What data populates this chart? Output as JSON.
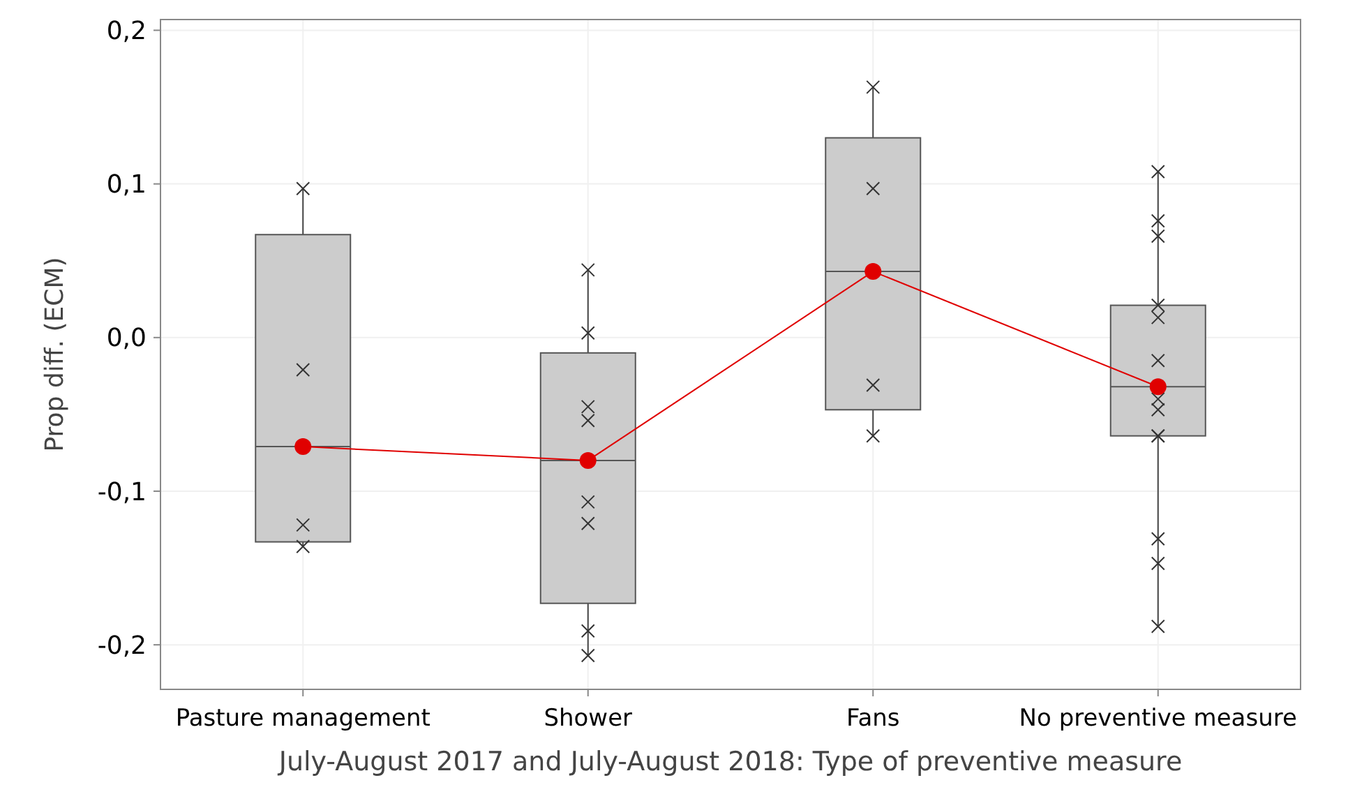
{
  "chart_data": {
    "type": "box",
    "xlabel": "July-August 2017 and July-August 2018: Type of preventive measure",
    "ylabel": "Prop diff. (ECM)",
    "categories": [
      "Pasture management",
      "Shower",
      "Fans",
      "No preventive measure"
    ],
    "boxes": [
      {
        "low": -0.136,
        "q1": -0.133,
        "median": -0.071,
        "q3": 0.067,
        "high": 0.097
      },
      {
        "low": -0.207,
        "q1": -0.173,
        "median": -0.08,
        "q3": -0.01,
        "high": 0.044
      },
      {
        "low": -0.064,
        "q1": -0.047,
        "median": 0.043,
        "q3": 0.13,
        "high": 0.163
      },
      {
        "low": -0.188,
        "q1": -0.064,
        "median": -0.032,
        "q3": 0.021,
        "high": 0.108
      }
    ],
    "color": "#cccccc",
    "series": [
      {
        "type": "scatter",
        "marker": "cross",
        "color": "#333333",
        "x": [
          "Pasture management",
          "Pasture management",
          "Pasture management",
          "Pasture management",
          "Shower",
          "Shower",
          "Shower",
          "Shower",
          "Shower",
          "Shower",
          "Shower",
          "Shower",
          "Fans",
          "Fans",
          "Fans",
          "Fans",
          "No preventive measure",
          "No preventive measure",
          "No preventive measure",
          "No preventive measure",
          "No preventive measure",
          "No preventive measure",
          "No preventive measure",
          "No preventive measure",
          "No preventive measure",
          "No preventive measure",
          "No preventive measure",
          "No preventive measure",
          "No preventive measure"
        ],
        "values": [
          0.097,
          -0.021,
          -0.122,
          -0.136,
          0.044,
          0.003,
          -0.045,
          -0.054,
          -0.107,
          -0.121,
          -0.191,
          -0.207,
          0.163,
          0.097,
          -0.031,
          -0.064,
          0.108,
          0.076,
          0.066,
          0.021,
          0.013,
          -0.015,
          -0.04,
          -0.047,
          -0.064,
          -0.064,
          -0.131,
          -0.147,
          -0.188
        ]
      },
      {
        "type": "line",
        "marker": "circle",
        "color": "#e00000",
        "values": [
          -0.071,
          -0.08,
          0.043,
          -0.032
        ]
      }
    ],
    "ylim": [
      -0.229,
      0.207
    ],
    "yticks": [
      {
        "value": -0.2,
        "label": "-0,2"
      },
      {
        "value": -0.1,
        "label": "-0,1"
      },
      {
        "value": 0,
        "label": "0,0"
      },
      {
        "value": 0.1,
        "label": "0,1"
      },
      {
        "value": 0.2,
        "label": "0,2"
      }
    ],
    "grid": true
  }
}
